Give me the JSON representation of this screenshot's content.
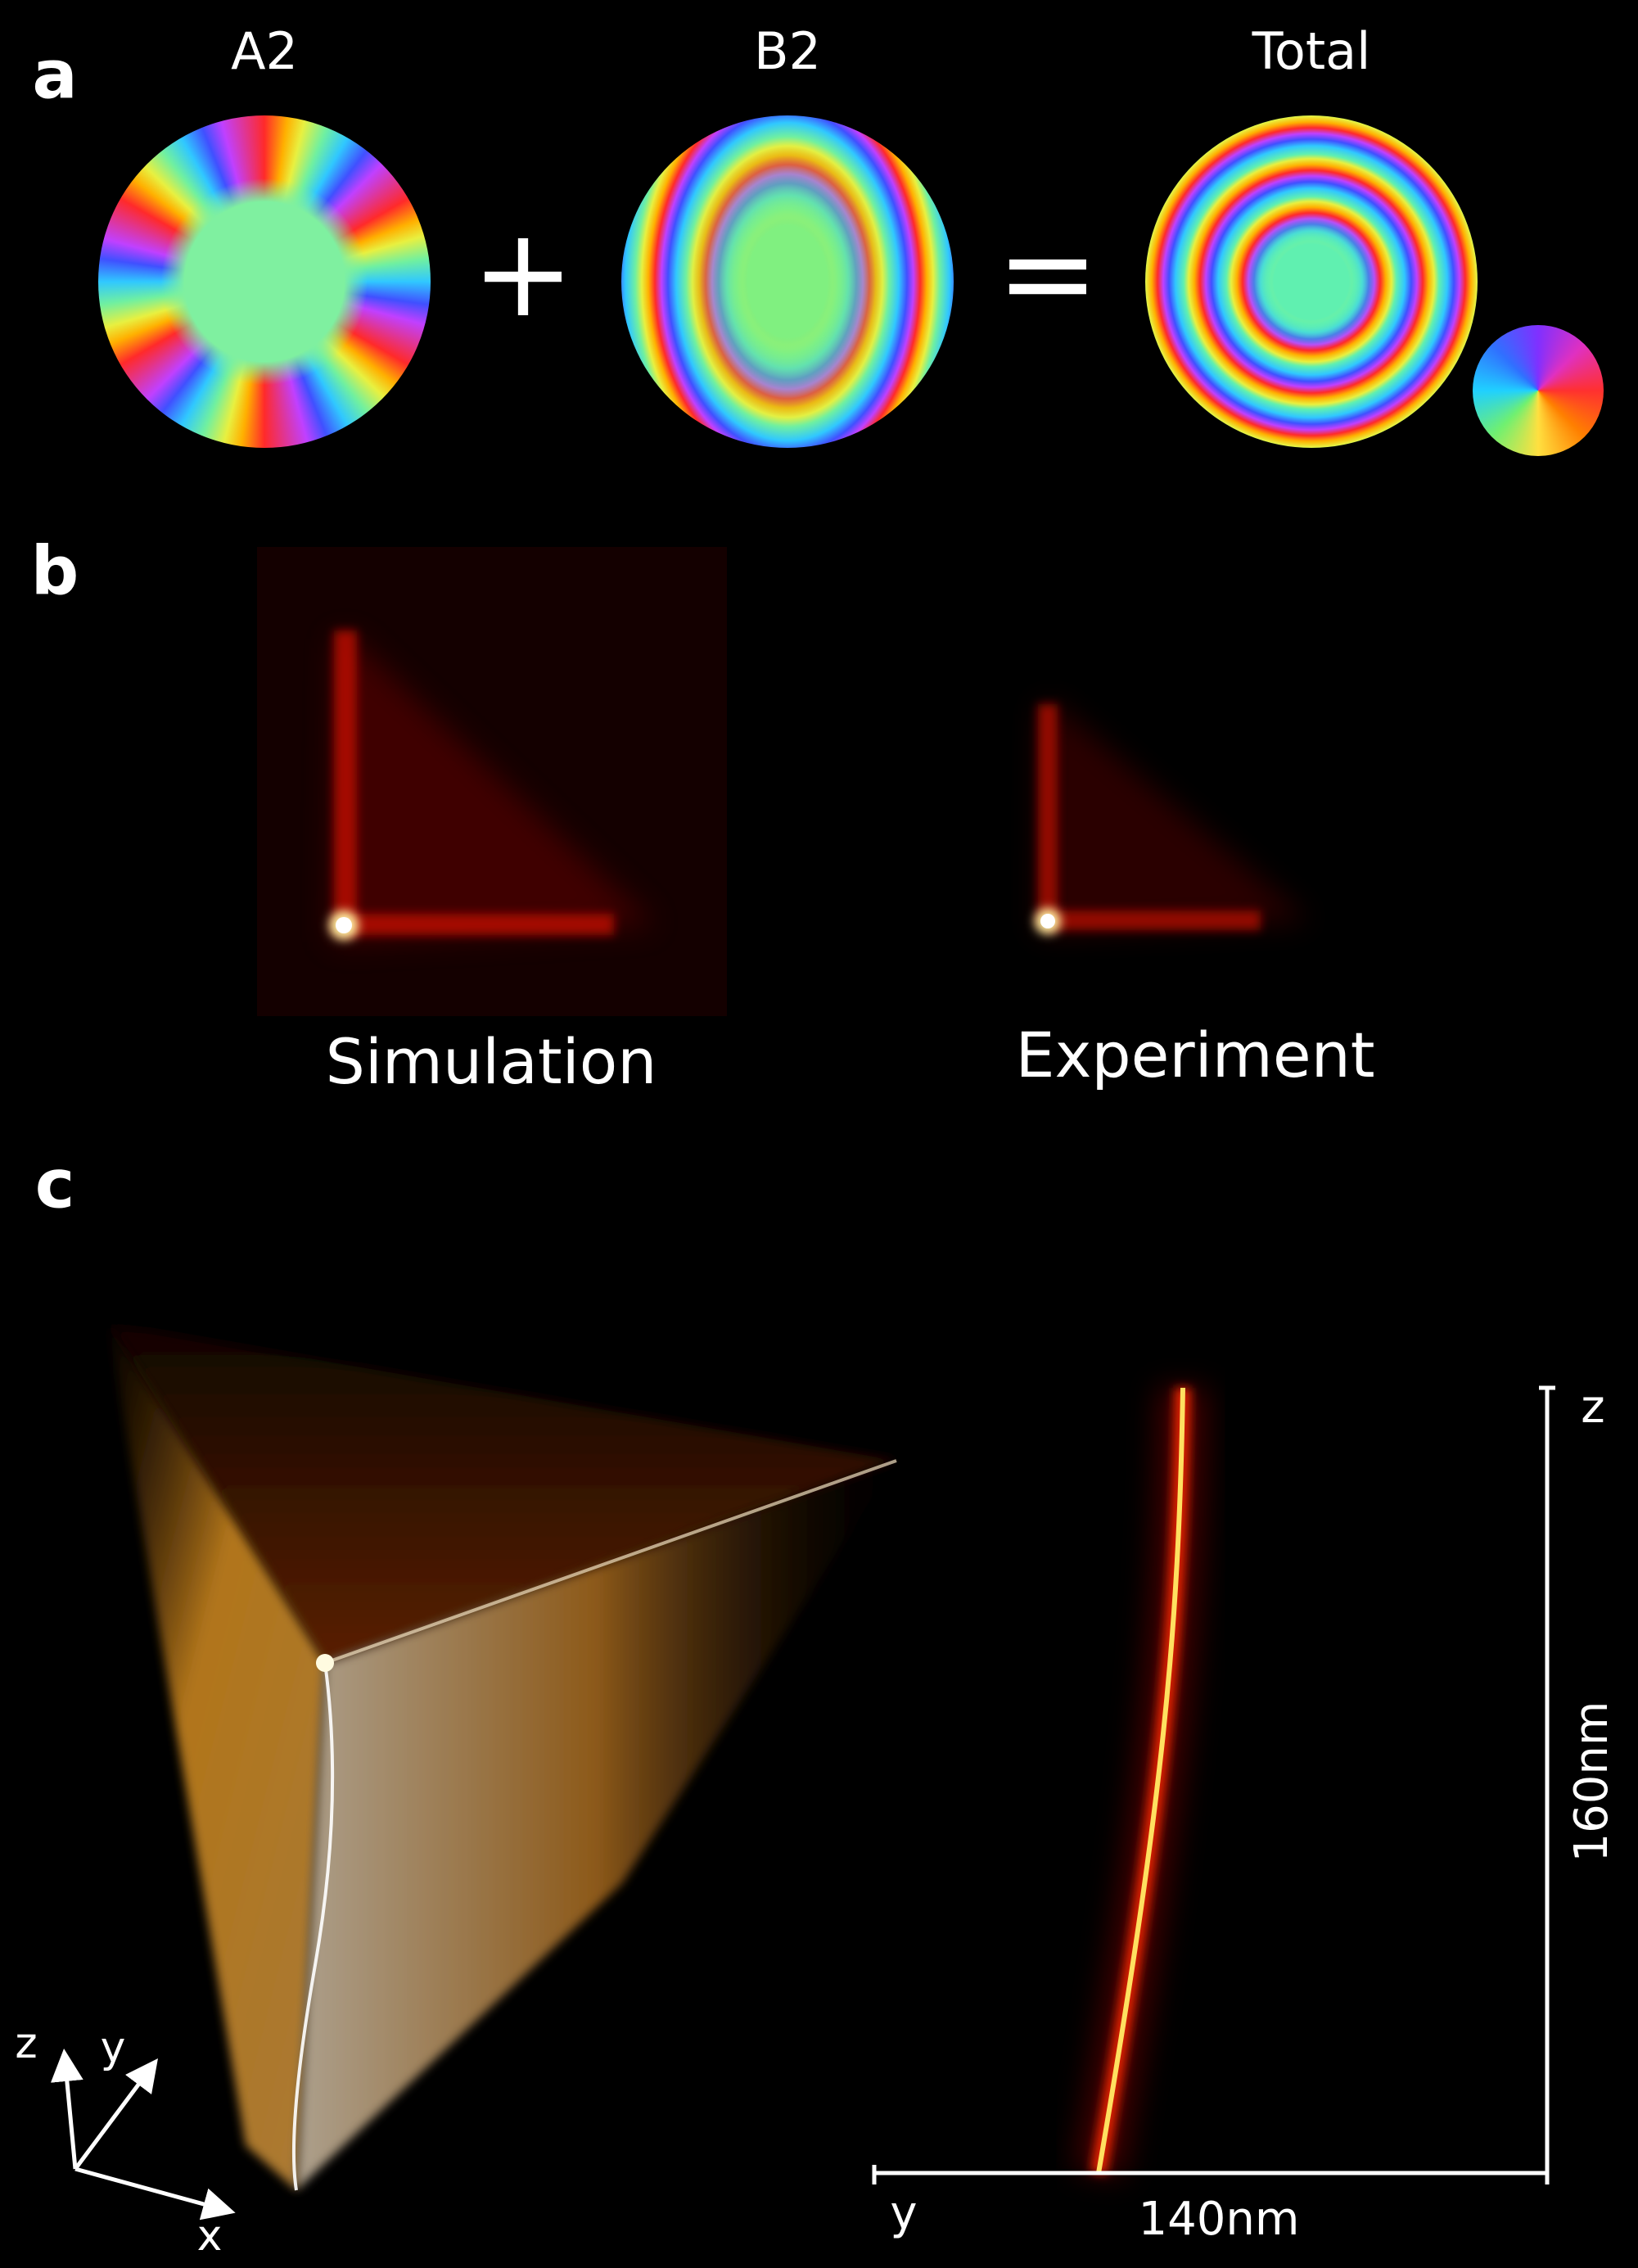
{
  "panels": {
    "a": {
      "label": "a",
      "titles": [
        "A2",
        "B2",
        "Total"
      ],
      "operators": [
        "+",
        "="
      ]
    },
    "b": {
      "label": "b",
      "captions": [
        "Simulation",
        "Experiment"
      ]
    },
    "c": {
      "label": "c",
      "axes": [
        "z",
        "y",
        "x"
      ],
      "scale": {
        "vertical_axis": "z",
        "vertical_length": "160nm",
        "horizontal_axis": "y",
        "horizontal_length": "140nm"
      }
    }
  }
}
